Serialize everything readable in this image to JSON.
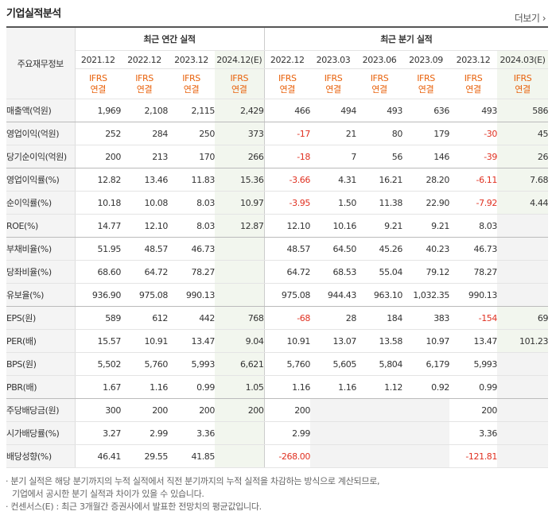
{
  "title": "기업실적분석",
  "more_label": "더보기",
  "header": {
    "row_label": "주요재무정보",
    "annual_group": "최근 연간 실적",
    "quarter_group": "최근 분기 실적",
    "standard": [
      "IFRS",
      "연결"
    ],
    "annual_periods": [
      "2021.12",
      "2022.12",
      "2023.12",
      "2024.12(E)"
    ],
    "quarter_periods": [
      "2022.12",
      "2023.03",
      "2023.06",
      "2023.09",
      "2023.12",
      "2024.03(E)"
    ]
  },
  "rows": [
    {
      "label": "매출액(억원)",
      "values": [
        "1,969",
        "2,108",
        "2,115",
        "2,429",
        "466",
        "494",
        "493",
        "636",
        "493",
        "586"
      ],
      "group_end": true
    },
    {
      "label": "영업이익(억원)",
      "values": [
        "252",
        "284",
        "250",
        "373",
        "-17",
        "21",
        "80",
        "179",
        "-30",
        "45"
      ]
    },
    {
      "label": "당기순이익(억원)",
      "values": [
        "200",
        "213",
        "170",
        "266",
        "-18",
        "7",
        "56",
        "146",
        "-39",
        "26"
      ],
      "group_end": true
    },
    {
      "label": "영업이익률(%)",
      "values": [
        "12.82",
        "13.46",
        "11.83",
        "15.36",
        "-3.66",
        "4.31",
        "16.21",
        "28.20",
        "-6.11",
        "7.68"
      ]
    },
    {
      "label": "순이익률(%)",
      "values": [
        "10.18",
        "10.08",
        "8.03",
        "10.97",
        "-3.95",
        "1.50",
        "11.38",
        "22.90",
        "-7.92",
        "4.44"
      ]
    },
    {
      "label": "ROE(%)",
      "values": [
        "14.77",
        "12.10",
        "8.03",
        "12.87",
        "12.10",
        "10.16",
        "9.21",
        "9.21",
        "8.03",
        ""
      ],
      "group_end": true
    },
    {
      "label": "부채비율(%)",
      "values": [
        "51.95",
        "48.57",
        "46.73",
        "",
        "48.57",
        "64.50",
        "45.26",
        "40.23",
        "46.73",
        ""
      ]
    },
    {
      "label": "당좌비율(%)",
      "values": [
        "68.60",
        "64.72",
        "78.27",
        "",
        "64.72",
        "68.53",
        "55.04",
        "79.12",
        "78.27",
        ""
      ]
    },
    {
      "label": "유보율(%)",
      "values": [
        "936.90",
        "975.08",
        "990.13",
        "",
        "975.08",
        "944.43",
        "963.10",
        "1,032.35",
        "990.13",
        ""
      ],
      "group_end": true
    },
    {
      "label": "EPS(원)",
      "values": [
        "589",
        "612",
        "442",
        "768",
        "-68",
        "28",
        "184",
        "383",
        "-154",
        "69"
      ]
    },
    {
      "label": "PER(배)",
      "values": [
        "15.57",
        "10.91",
        "13.47",
        "9.04",
        "10.91",
        "13.07",
        "13.58",
        "10.97",
        "13.47",
        "101.23"
      ]
    },
    {
      "label": "BPS(원)",
      "values": [
        "5,502",
        "5,760",
        "5,993",
        "6,621",
        "5,760",
        "5,605",
        "5,804",
        "6,179",
        "5,993",
        ""
      ]
    },
    {
      "label": "PBR(배)",
      "values": [
        "1.67",
        "1.16",
        "0.99",
        "1.05",
        "1.16",
        "1.16",
        "1.12",
        "0.92",
        "0.99",
        ""
      ],
      "group_end": true
    },
    {
      "label": "주당배당금(원)",
      "values": [
        "300",
        "200",
        "200",
        "200",
        "200",
        "",
        "",
        "",
        "200",
        ""
      ]
    },
    {
      "label": "시가배당률(%)",
      "values": [
        "3.27",
        "2.99",
        "3.36",
        "",
        "2.99",
        "",
        "",
        "",
        "3.36",
        ""
      ]
    },
    {
      "label": "배당성향(%)",
      "values": [
        "46.41",
        "29.55",
        "41.85",
        "",
        "-268.00",
        "",
        "",
        "",
        "-121.81",
        ""
      ]
    }
  ],
  "empty_cells": [
    [
      13,
      5
    ],
    [
      13,
      6
    ],
    [
      13,
      7
    ],
    [
      13,
      9
    ],
    [
      14,
      5
    ],
    [
      14,
      6
    ],
    [
      14,
      7
    ],
    [
      14,
      9
    ],
    [
      15,
      5
    ],
    [
      15,
      6
    ],
    [
      15,
      7
    ],
    [
      15,
      9
    ],
    [
      11,
      9
    ],
    [
      12,
      9
    ],
    [
      5,
      9
    ],
    [
      6,
      9
    ],
    [
      7,
      9
    ],
    [
      8,
      9
    ]
  ],
  "notes": [
    "· 분기 실적은 해당 분기까지의 누적 실적에서 직전 분기까지의 누적 실적을 차감하는 방식으로 계산되므로,",
    "기업에서 공시한 분기 실적과 차이가 있을 수 있습니다.",
    "· 컨센서스(E) : 최근 3개월간 증권사에서 발표한 전망치의 평균값입니다."
  ]
}
